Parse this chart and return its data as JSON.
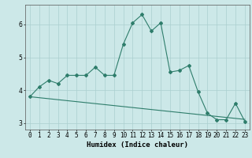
{
  "title": "",
  "xlabel": "Humidex (Indice chaleur)",
  "bg_color": "#cce8e8",
  "line_color": "#2e7d6b",
  "grid_color": "#aacfcf",
  "x_values": [
    0,
    1,
    2,
    3,
    4,
    5,
    6,
    7,
    8,
    9,
    10,
    11,
    12,
    13,
    14,
    15,
    16,
    17,
    18,
    19,
    20,
    21,
    22,
    23
  ],
  "y_main": [
    3.8,
    4.1,
    4.3,
    4.2,
    4.45,
    4.45,
    4.45,
    4.7,
    4.45,
    4.45,
    5.4,
    6.05,
    6.3,
    5.8,
    6.05,
    4.55,
    4.6,
    4.75,
    3.95,
    3.3,
    3.1,
    3.1,
    3.6,
    3.05
  ],
  "y_trend": [
    3.8,
    3.77,
    3.74,
    3.71,
    3.68,
    3.65,
    3.62,
    3.59,
    3.56,
    3.53,
    3.5,
    3.47,
    3.44,
    3.41,
    3.38,
    3.35,
    3.32,
    3.29,
    3.26,
    3.23,
    3.2,
    3.17,
    3.14,
    3.11
  ],
  "ylim": [
    2.8,
    6.6
  ],
  "yticks": [
    3,
    4,
    5,
    6
  ],
  "title_fontsize": 6.5,
  "axis_fontsize": 6.5,
  "tick_fontsize": 5.5
}
